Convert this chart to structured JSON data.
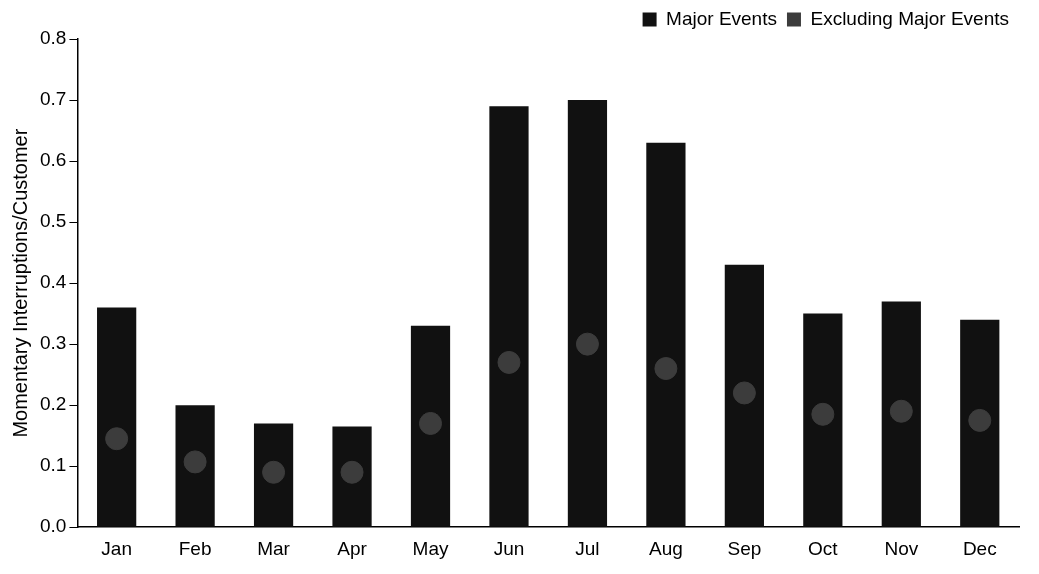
{
  "chart_data": {
    "type": "bar",
    "ylabel": "Momentary Interruptions/Customer",
    "categories": [
      "Jan",
      "Feb",
      "Mar",
      "Apr",
      "May",
      "Jun",
      "Jul",
      "Aug",
      "Sep",
      "Oct",
      "Nov",
      "Dec"
    ],
    "series": [
      {
        "name": "Major Events",
        "color": "#111111",
        "values": [
          0.36,
          0.2,
          0.17,
          0.165,
          0.33,
          0.69,
          0.7,
          0.63,
          0.43,
          0.35,
          0.37,
          0.34
        ]
      },
      {
        "name": "Excluding Major Events",
        "type": "scatter",
        "x": [
          "Jan",
          "Feb",
          "Mar",
          "Apr",
          "May",
          "Jun",
          "Jul",
          "Aug",
          "Sep",
          "Oct",
          "Nov",
          "Dec"
        ],
        "color": "#3c3c3c",
        "values": [
          0.145,
          0.107,
          0.09,
          0.09,
          0.17,
          0.27,
          0.3,
          0.26,
          0.22,
          0.185,
          0.19,
          0.175
        ]
      }
    ],
    "ylim": [
      0,
      0.8
    ],
    "yticks": [
      {
        "value": 0,
        "label": "0.0"
      },
      0.1,
      0.2,
      0.3,
      0.4,
      0.5,
      0.6,
      0.7,
      0.8
    ],
    "grid": false,
    "legend": "top right",
    "marker": "circle"
  }
}
